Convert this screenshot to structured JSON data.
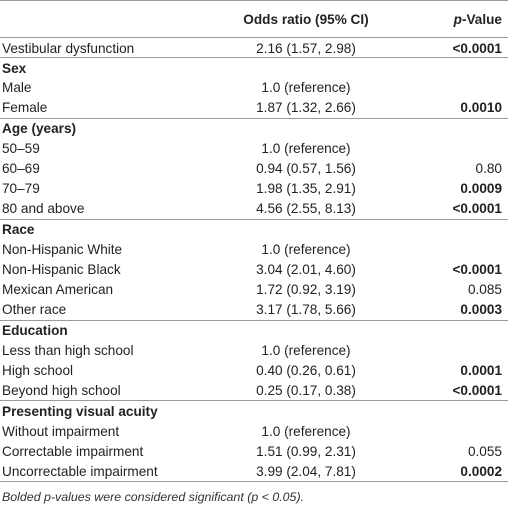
{
  "header": {
    "col_label": "",
    "col_odds": "Odds ratio (95% CI)",
    "col_p_italic": "p",
    "col_p_rest": "-Value"
  },
  "rows": [
    {
      "type": "data",
      "label": "Vestibular dysfunction",
      "odds": "2.16 (1.57, 2.98)",
      "p": "<0.0001",
      "bold": true
    },
    {
      "type": "section",
      "label": "Sex"
    },
    {
      "type": "data",
      "label": "Male",
      "odds": "1.0 (reference)",
      "p": "",
      "bold": false
    },
    {
      "type": "data",
      "label": "Female",
      "odds": "1.87 (1.32, 2.66)",
      "p": "0.0010",
      "bold": true
    },
    {
      "type": "section",
      "label": "Age (years)"
    },
    {
      "type": "data",
      "label": "50–59",
      "odds": "1.0 (reference)",
      "p": "",
      "bold": false
    },
    {
      "type": "data",
      "label": "60–69",
      "odds": "0.94 (0.57, 1.56)",
      "p": "0.80",
      "bold": false
    },
    {
      "type": "data",
      "label": "70–79",
      "odds": "1.98 (1.35, 2.91)",
      "p": "0.0009",
      "bold": true
    },
    {
      "type": "data",
      "label": "80 and above",
      "odds": "4.56 (2.55, 8.13)",
      "p": "<0.0001",
      "bold": true
    },
    {
      "type": "section",
      "label": "Race"
    },
    {
      "type": "data",
      "label": "Non-Hispanic White",
      "odds": "1.0 (reference)",
      "p": "",
      "bold": false
    },
    {
      "type": "data",
      "label": "Non-Hispanic Black",
      "odds": "3.04 (2.01, 4.60)",
      "p": "<0.0001",
      "bold": true
    },
    {
      "type": "data",
      "label": "Mexican American",
      "odds": "1.72 (0.92, 3.19)",
      "p": "0.085",
      "bold": false
    },
    {
      "type": "data",
      "label": "Other race",
      "odds": "3.17 (1.78, 5.66)",
      "p": "0.0003",
      "bold": true
    },
    {
      "type": "section",
      "label": "Education"
    },
    {
      "type": "data",
      "label": "Less than high school",
      "odds": "1.0 (reference)",
      "p": "",
      "bold": false
    },
    {
      "type": "data",
      "label": "High school",
      "odds": "0.40 (0.26, 0.61)",
      "p": "0.0001",
      "bold": true
    },
    {
      "type": "data",
      "label": "Beyond high school",
      "odds": "0.25 (0.17, 0.38)",
      "p": "<0.0001",
      "bold": true
    },
    {
      "type": "section",
      "label": "Presenting visual acuity"
    },
    {
      "type": "data",
      "label": "Without impairment",
      "odds": "1.0 (reference)",
      "p": "",
      "bold": false
    },
    {
      "type": "data",
      "label": "Correctable impairment",
      "odds": "1.51 (0.99, 2.31)",
      "p": "0.055",
      "bold": false
    },
    {
      "type": "data",
      "label": "Uncorrectable impairment",
      "odds": "3.99 (2.04, 7.81)",
      "p": "0.0002",
      "bold": true
    }
  ],
  "footnote": "Bolded p-values were considered significant (p < 0.05)."
}
